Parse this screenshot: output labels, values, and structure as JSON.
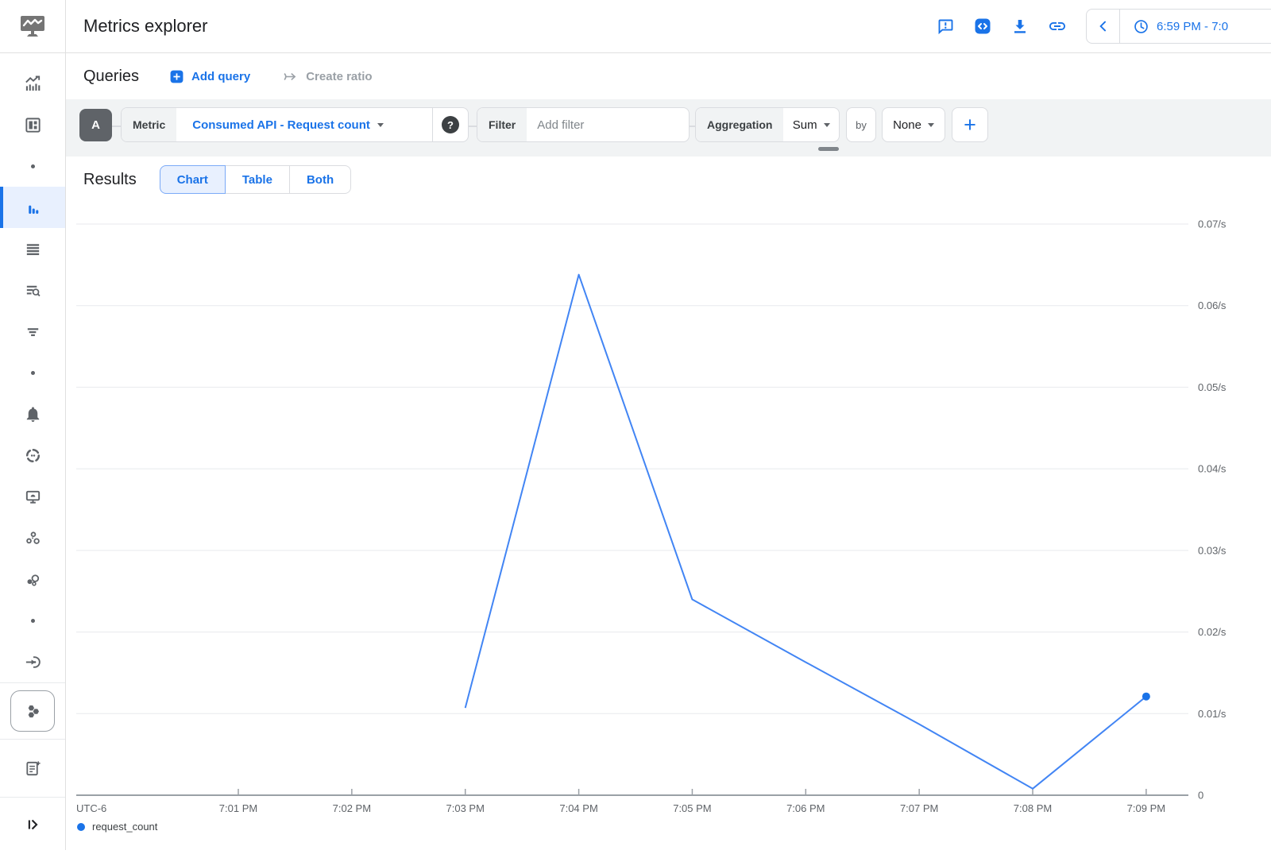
{
  "colors": {
    "accent": "#1a73e8",
    "line": "#4285f4",
    "point": "#1a73e8",
    "selected_nav_bg": "#e8f0fe",
    "toolbar_bg": "#f1f3f4",
    "border": "#dadce0",
    "text": "#202124",
    "muted": "#5f6368",
    "disabled": "#9aa0a6"
  },
  "header": {
    "title": "Metrics explorer",
    "action_icons": [
      "feedback-icon",
      "code-icon",
      "download-icon",
      "link-icon"
    ],
    "time_range": {
      "back_icon": "chevron-left-icon",
      "clock_icon": "clock-icon",
      "value": "6:59 PM - 7:0"
    }
  },
  "sidebar": {
    "logo_icon": "monitoring-logo-icon",
    "selected_index": 3,
    "items": [
      {
        "icon": "overview-chart-icon"
      },
      {
        "icon": "dashboards-icon"
      },
      {
        "icon": "dot-icon"
      },
      {
        "icon": "metrics-explorer-bars-icon",
        "selected": true
      },
      {
        "icon": "stacked-list-icon"
      },
      {
        "icon": "log-search-icon"
      },
      {
        "icon": "trace-lines-icon"
      },
      {
        "icon": "dot-icon"
      },
      {
        "icon": "bell-icon"
      },
      {
        "icon": "uptime-check-icon"
      },
      {
        "icon": "synthetic-monitor-icon"
      },
      {
        "icon": "groups-circles-icon"
      },
      {
        "icon": "cluster-circles-icon"
      },
      {
        "icon": "dot-icon"
      },
      {
        "icon": "integration-arrow-icon"
      },
      {
        "icon": "services-hexagons-icon"
      },
      {
        "icon": "release-notes-icon"
      },
      {
        "icon": "expand-panel-icon"
      }
    ]
  },
  "queries": {
    "title": "Queries",
    "add_query_label": "Add query",
    "create_ratio_label": "Create ratio"
  },
  "query_builder": {
    "query_letter": "A",
    "metric_label": "Metric",
    "metric_value": "Consumed API - Request count",
    "help_label": "?",
    "filter_label": "Filter",
    "filter_placeholder": "Add filter",
    "aggregation_label": "Aggregation",
    "aggregation_value": "Sum",
    "by_label": "by",
    "group_by_value": "None",
    "add_button_label": "+"
  },
  "results": {
    "title": "Results",
    "tabs": [
      {
        "label": "Chart",
        "selected": true
      },
      {
        "label": "Table",
        "selected": false
      },
      {
        "label": "Both",
        "selected": false
      }
    ]
  },
  "chart_data": {
    "type": "line",
    "unit": "/s",
    "grid": "horizontal",
    "legend_position": "bottom-left",
    "x_axis": {
      "timezone_label": "UTC-6",
      "ticks": [
        {
          "minute": 1,
          "label": "7:01 PM"
        },
        {
          "minute": 2,
          "label": "7:02 PM"
        },
        {
          "minute": 3,
          "label": "7:03 PM"
        },
        {
          "minute": 4,
          "label": "7:04 PM"
        },
        {
          "minute": 5,
          "label": "7:05 PM"
        },
        {
          "minute": 6,
          "label": "7:06 PM"
        },
        {
          "minute": 7,
          "label": "7:07 PM"
        },
        {
          "minute": 8,
          "label": "7:08 PM"
        },
        {
          "minute": 9,
          "label": "7:09 PM"
        }
      ]
    },
    "y_axis": {
      "ylim": [
        0,
        0.07
      ],
      "zero_label": "0",
      "ticks": [
        {
          "value": 0.01,
          "label": "0.01/s"
        },
        {
          "value": 0.02,
          "label": "0.02/s"
        },
        {
          "value": 0.03,
          "label": "0.03/s"
        },
        {
          "value": 0.04,
          "label": "0.04/s"
        },
        {
          "value": 0.05,
          "label": "0.05/s"
        },
        {
          "value": 0.06,
          "label": "0.06/s"
        },
        {
          "value": 0.07,
          "label": "0.07/s"
        }
      ]
    },
    "series": [
      {
        "name": "request_count",
        "color": "#4285f4",
        "point_color": "#1a73e8",
        "points": [
          {
            "time": "7:03 PM",
            "minute": 3,
            "value": 0.0107
          },
          {
            "time": "7:04 PM",
            "minute": 4,
            "value": 0.0638
          },
          {
            "time": "7:05 PM",
            "minute": 5,
            "value": 0.024
          },
          {
            "time": "7:06 PM",
            "minute": 6,
            "value": 0.0163
          },
          {
            "time": "7:07 PM",
            "minute": 7,
            "value": 0.0087
          },
          {
            "time": "7:08 PM",
            "minute": 8,
            "value": 0.0008
          },
          {
            "time": "7:09 PM",
            "minute": 9,
            "value": 0.0121
          }
        ]
      }
    ],
    "legend": [
      {
        "label": "request_count",
        "color": "#1a73e8"
      }
    ]
  }
}
